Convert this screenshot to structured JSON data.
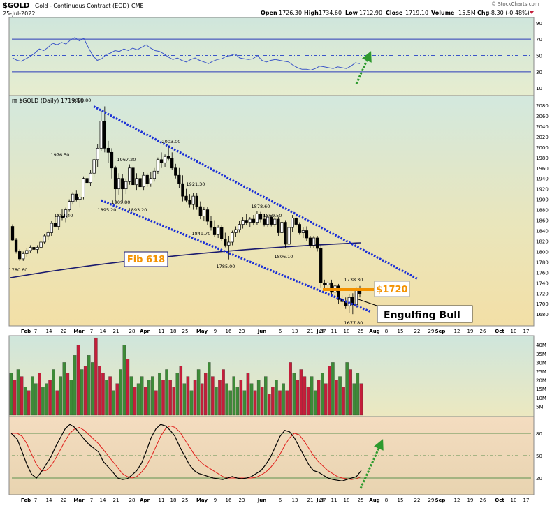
{
  "header": {
    "symbol": "$GOLD",
    "name": "Gold - Continuous Contract (EOD)",
    "exchange": "CME",
    "date": "25-Jul-2022",
    "open_label": "Open",
    "open": "1726.30",
    "high_label": "High",
    "high": "1734.60",
    "low_label": "Low",
    "low": "1712.90",
    "close_label": "Close",
    "close": "1719.10",
    "volume_label": "Volume",
    "volume": "15.5M",
    "chg_label": "Chg",
    "chg": "-8.30 (-0.48%)",
    "watermark": "© StockCharts.com"
  },
  "colors": {
    "up": "#3d8b37",
    "down": "#c41e3a",
    "channel": "#1a2fd6",
    "fib": "#1a1a6e",
    "level": "#f39200",
    "arrow": "#2e9a2e",
    "rsi_line": "#3b55c8",
    "stoch_k": "#000000",
    "stoch_d": "#e0201c"
  },
  "chart_data": [
    {
      "type": "line",
      "panel": "RSI",
      "ylim": [
        0,
        100
      ],
      "tick_labels": [
        "90",
        "70",
        "50",
        "30",
        "10"
      ],
      "levels": [
        70,
        50,
        30
      ],
      "series": [
        {
          "values": [
            47,
            44,
            43,
            46,
            49,
            53,
            58,
            56,
            60,
            65,
            63,
            66,
            64,
            69,
            72,
            68,
            71,
            60,
            50,
            44,
            46,
            51,
            53,
            56,
            55,
            58,
            56,
            59,
            57,
            60,
            63,
            59,
            56,
            55,
            52,
            48,
            45,
            47,
            44,
            42,
            45,
            47,
            44,
            42,
            40,
            43,
            45,
            46,
            49,
            50,
            52,
            47,
            46,
            45,
            46,
            50,
            44,
            42,
            44,
            45,
            44,
            43,
            42,
            38,
            35,
            33,
            33,
            32,
            34,
            37,
            36,
            35,
            34,
            36,
            35,
            34,
            37,
            41,
            40
          ]
        }
      ]
    },
    {
      "type": "candlestick",
      "panel": "price",
      "title": "$GOLD (Daily) 1719.10",
      "ylim": [
        1665,
        2095
      ],
      "y_ticks": [
        2080,
        2060,
        2040,
        2020,
        2000,
        1980,
        1960,
        1940,
        1920,
        1900,
        1880,
        1860,
        1840,
        1820,
        1800,
        1780,
        1760,
        1740,
        1720,
        1700,
        1680
      ],
      "x_ticks": [
        "Feb",
        "7",
        "14",
        "22",
        "Mar",
        "7",
        "14",
        "21",
        "28",
        "Apr",
        "11",
        "18",
        "25",
        "May",
        "9",
        "16",
        "23",
        "Jun",
        "6",
        "13",
        "21",
        "27",
        "Jul",
        "11",
        "18",
        "25",
        "Aug",
        "8",
        "15",
        "22",
        "29",
        "Sep",
        "12",
        "19",
        "26",
        "Oct",
        "10",
        "17"
      ],
      "ohlc": [
        [
          1848,
          1852,
          1820,
          1822
        ],
        [
          1822,
          1826,
          1796,
          1800
        ],
        [
          1800,
          1804,
          1782,
          1786
        ],
        [
          1786,
          1800,
          1782,
          1796
        ],
        [
          1796,
          1806,
          1790,
          1802
        ],
        [
          1802,
          1812,
          1798,
          1808
        ],
        [
          1808,
          1814,
          1802,
          1804
        ],
        [
          1804,
          1812,
          1796,
          1808
        ],
        [
          1808,
          1822,
          1804,
          1818
        ],
        [
          1818,
          1834,
          1814,
          1830
        ],
        [
          1830,
          1840,
          1822,
          1836
        ],
        [
          1836,
          1858,
          1830,
          1854
        ],
        [
          1854,
          1866,
          1846,
          1848
        ],
        [
          1848,
          1872,
          1842,
          1868
        ],
        [
          1868,
          1882,
          1860,
          1864
        ],
        [
          1864,
          1884,
          1856,
          1880
        ],
        [
          1880,
          1900,
          1876,
          1896
        ],
        [
          1896,
          1914,
          1890,
          1910
        ],
        [
          1910,
          1918,
          1896,
          1900
        ],
        [
          1900,
          1912,
          1884,
          1904
        ],
        [
          1904,
          1944,
          1900,
          1940
        ],
        [
          1940,
          1960,
          1924,
          1932
        ],
        [
          1932,
          1956,
          1926,
          1950
        ],
        [
          1950,
          1978,
          1942,
          1976
        ],
        [
          1976,
          2006,
          1962,
          1998
        ],
        [
          1998,
          2070,
          1992,
          2050
        ],
        [
          2050,
          2078,
          1990,
          1998
        ],
        [
          1998,
          2012,
          1970,
          1990
        ],
        [
          1990,
          1998,
          1940,
          1960
        ],
        [
          1960,
          1964,
          1895,
          1920
        ],
        [
          1920,
          1950,
          1909,
          1940
        ],
        [
          1940,
          1948,
          1893,
          1920
        ],
        [
          1920,
          1940,
          1910,
          1934
        ],
        [
          1934,
          1967,
          1928,
          1960
        ],
        [
          1960,
          1966,
          1920,
          1928
        ],
        [
          1928,
          1950,
          1918,
          1940
        ],
        [
          1940,
          1944,
          1920,
          1924
        ],
        [
          1924,
          1952,
          1918,
          1946
        ],
        [
          1946,
          1950,
          1924,
          1930
        ],
        [
          1930,
          1952,
          1924,
          1940
        ],
        [
          1940,
          1960,
          1934,
          1954
        ],
        [
          1954,
          1980,
          1948,
          1976
        ],
        [
          1976,
          1990,
          1960,
          1970
        ],
        [
          1970,
          1986,
          1962,
          1982
        ],
        [
          1982,
          2003,
          1974,
          1978
        ],
        [
          1978,
          1990,
          1956,
          1960
        ],
        [
          1960,
          1968,
          1940,
          1946
        ],
        [
          1946,
          1960,
          1921,
          1930
        ],
        [
          1930,
          1946,
          1896,
          1906
        ],
        [
          1906,
          1920,
          1894,
          1898
        ],
        [
          1898,
          1910,
          1884,
          1890
        ],
        [
          1890,
          1912,
          1880,
          1906
        ],
        [
          1906,
          1912,
          1880,
          1886
        ],
        [
          1886,
          1896,
          1862,
          1868
        ],
        [
          1868,
          1886,
          1858,
          1880
        ],
        [
          1880,
          1886,
          1850,
          1858
        ],
        [
          1858,
          1868,
          1840,
          1846
        ],
        [
          1846,
          1860,
          1828,
          1832
        ],
        [
          1832,
          1850,
          1826,
          1846
        ],
        [
          1846,
          1850,
          1820,
          1824
        ],
        [
          1824,
          1836,
          1808,
          1812
        ],
        [
          1812,
          1830,
          1785,
          1818
        ],
        [
          1818,
          1840,
          1812,
          1836
        ],
        [
          1836,
          1848,
          1828,
          1842
        ],
        [
          1842,
          1858,
          1836,
          1852
        ],
        [
          1852,
          1866,
          1844,
          1860
        ],
        [
          1860,
          1872,
          1850,
          1856
        ],
        [
          1856,
          1866,
          1846,
          1862
        ],
        [
          1862,
          1870,
          1850,
          1856
        ],
        [
          1856,
          1878,
          1850,
          1872
        ],
        [
          1872,
          1876,
          1856,
          1862
        ],
        [
          1862,
          1872,
          1848,
          1852
        ],
        [
          1852,
          1870,
          1846,
          1866
        ],
        [
          1866,
          1870,
          1848,
          1852
        ],
        [
          1852,
          1868,
          1846,
          1862
        ],
        [
          1862,
          1866,
          1830,
          1836
        ],
        [
          1836,
          1860,
          1830,
          1856
        ],
        [
          1856,
          1860,
          1806,
          1814
        ],
        [
          1814,
          1850,
          1808,
          1846
        ],
        [
          1846,
          1870,
          1838,
          1864
        ],
        [
          1864,
          1872,
          1848,
          1852
        ],
        [
          1852,
          1856,
          1832,
          1836
        ],
        [
          1836,
          1846,
          1826,
          1840
        ],
        [
          1840,
          1848,
          1820,
          1826
        ],
        [
          1826,
          1830,
          1806,
          1812
        ],
        [
          1812,
          1830,
          1806,
          1826
        ],
        [
          1826,
          1830,
          1800,
          1806
        ],
        [
          1806,
          1812,
          1730,
          1740
        ],
        [
          1740,
          1746,
          1726,
          1736
        ],
        [
          1736,
          1744,
          1728,
          1740
        ],
        [
          1740,
          1746,
          1716,
          1722
        ],
        [
          1722,
          1740,
          1716,
          1734
        ],
        [
          1734,
          1738,
          1700,
          1708
        ],
        [
          1708,
          1716,
          1698,
          1704
        ],
        [
          1704,
          1712,
          1690,
          1696
        ],
        [
          1696,
          1718,
          1682,
          1712
        ],
        [
          1712,
          1720,
          1680,
          1698
        ],
        [
          1698,
          1730,
          1692,
          1726
        ],
        [
          1726,
          1734,
          1712,
          1719
        ]
      ],
      "annotations": [
        "2078.80",
        "1976.50",
        "1884.40",
        "1780.60",
        "1967.20",
        "1895.20",
        "1909.80",
        "1893.20",
        "2003.00",
        "1921.30",
        "1849.70",
        "1785.00",
        "1878.60",
        "1869.50",
        "1806.10",
        "1738.30",
        "1677.80"
      ],
      "label_fib": "Fib 618",
      "label_level": "$1720",
      "label_pattern": "Engulfing Bull"
    },
    {
      "type": "bar",
      "panel": "volume",
      "ylim": [
        0,
        45
      ],
      "tick_labels": [
        "40M",
        "35M",
        "30M",
        "25M",
        "20M",
        "15M",
        "10M",
        "5M"
      ],
      "values": [
        24,
        20,
        26,
        22,
        16,
        14,
        22,
        18,
        24,
        16,
        18,
        20,
        26,
        14,
        22,
        30,
        24,
        20,
        34,
        40,
        26,
        28,
        34,
        30,
        44,
        28,
        24,
        20,
        22,
        14,
        18,
        26,
        40,
        32,
        22,
        16,
        18,
        22,
        16,
        20,
        22,
        14,
        24,
        20,
        26,
        20,
        16,
        24,
        28,
        18,
        22,
        14,
        20,
        26,
        18,
        24,
        30,
        22,
        16,
        20,
        26,
        18,
        14,
        22,
        16,
        20,
        14,
        24,
        18,
        14,
        20,
        16,
        22,
        12,
        16,
        20,
        14,
        18,
        14,
        30,
        24,
        20,
        26,
        22,
        16,
        22,
        14,
        20,
        24,
        18,
        28,
        30,
        20,
        22,
        16,
        30,
        26,
        18,
        24,
        18
      ],
      "up": [
        1,
        0,
        1,
        0,
        1,
        0,
        1,
        1,
        0,
        1,
        1,
        0,
        1,
        0,
        1,
        1,
        0,
        1,
        1,
        0,
        1,
        0,
        1,
        1,
        0,
        0,
        0,
        1,
        0,
        1,
        0,
        1,
        1,
        0,
        1,
        0,
        1,
        1,
        0,
        1,
        1,
        0,
        1,
        0,
        1,
        0,
        0,
        1,
        0,
        1,
        0,
        1,
        0,
        1,
        0,
        0,
        1,
        0,
        1,
        0,
        0,
        1,
        1,
        1,
        1,
        0,
        1,
        0,
        1,
        0,
        1,
        0,
        1,
        0,
        0,
        1,
        0,
        1,
        0,
        0,
        1,
        0,
        0,
        0,
        0,
        1,
        1,
        0,
        1,
        0,
        0,
        1,
        0,
        1,
        0,
        1,
        0,
        1,
        1,
        0
      ]
    },
    {
      "type": "line",
      "panel": "stochastic",
      "ylim": [
        0,
        100
      ],
      "tick_labels": [
        "80",
        "50",
        "20"
      ],
      "levels": [
        80,
        50,
        20
      ],
      "series": [
        {
          "values": [
            80,
            72,
            55,
            38,
            25,
            20,
            28,
            38,
            48,
            62,
            74,
            86,
            92,
            88,
            80,
            72,
            65,
            60,
            55,
            42,
            35,
            28,
            20,
            18,
            19,
            24,
            30,
            40,
            56,
            74,
            86,
            92,
            90,
            84,
            76,
            62,
            50,
            38,
            30,
            26,
            24,
            22,
            20,
            19,
            18,
            20,
            22,
            20,
            19,
            20,
            22,
            26,
            30,
            38,
            48,
            62,
            76,
            84,
            82,
            74,
            62,
            50,
            38,
            30,
            28,
            24,
            20,
            18,
            17,
            16,
            18,
            20,
            22,
            30
          ]
        },
        {
          "values": [
            80,
            80,
            76,
            66,
            52,
            38,
            30,
            30,
            36,
            46,
            58,
            70,
            80,
            86,
            88,
            84,
            78,
            72,
            66,
            58,
            50,
            42,
            34,
            26,
            22,
            20,
            22,
            28,
            36,
            48,
            62,
            76,
            86,
            90,
            88,
            82,
            72,
            62,
            52,
            44,
            38,
            34,
            30,
            26,
            22,
            20,
            20,
            20,
            20,
            20,
            20,
            21,
            24,
            28,
            34,
            42,
            52,
            64,
            74,
            80,
            78,
            70,
            60,
            50,
            42,
            36,
            30,
            26,
            22,
            20,
            19,
            18,
            19,
            22
          ]
        }
      ]
    }
  ]
}
